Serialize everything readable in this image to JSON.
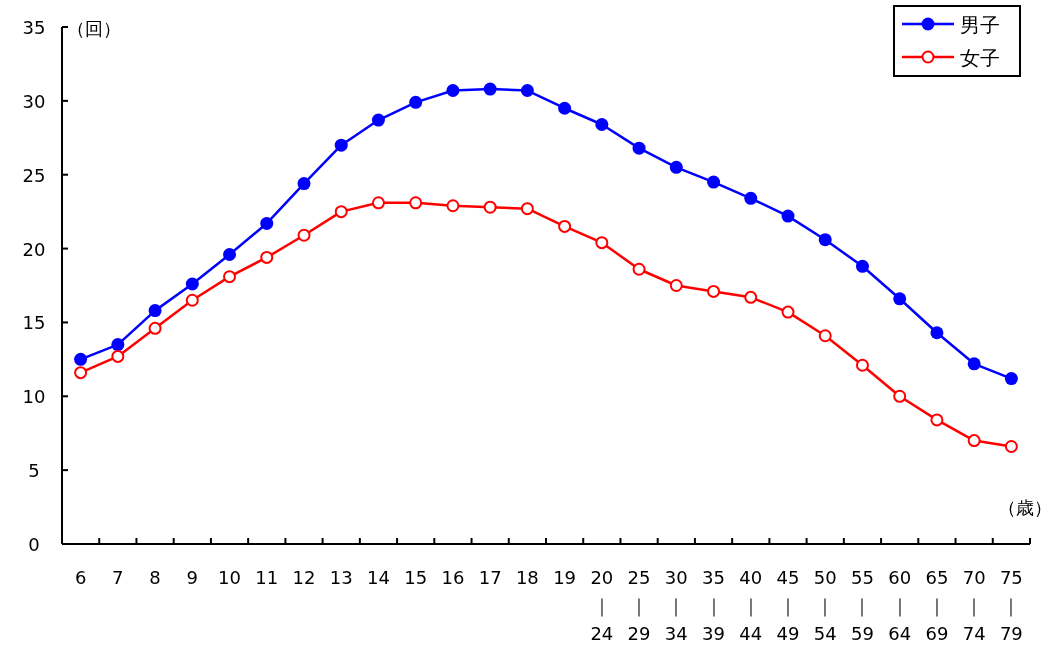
{
  "chart_data": {
    "type": "line",
    "ylabel": "（回）",
    "xlabel": "（歳）",
    "categories": [
      "6",
      "7",
      "8",
      "9",
      "10",
      "11",
      "12",
      "13",
      "14",
      "15",
      "16",
      "17",
      "18",
      "19",
      "20\n｜\n24",
      "25\n｜\n29",
      "30\n｜\n34",
      "35\n｜\n39",
      "40\n｜\n44",
      "45\n｜\n49",
      "50\n｜\n54",
      "55\n｜\n59",
      "60\n｜\n64",
      "65\n｜\n69",
      "70\n｜\n74",
      "75\n｜\n79"
    ],
    "series": [
      {
        "name": "男子",
        "color": "#0000ff",
        "marker": "circle",
        "values": [
          12.5,
          13.5,
          15.8,
          17.6,
          19.6,
          21.7,
          24.4,
          27.0,
          28.7,
          29.9,
          30.7,
          30.8,
          30.7,
          29.5,
          28.4,
          26.8,
          25.5,
          24.5,
          23.4,
          22.2,
          20.6,
          18.8,
          16.6,
          14.3,
          12.2,
          11.2
        ]
      },
      {
        "name": "女子",
        "color": "#ff0000",
        "marker": "circle",
        "values": [
          11.6,
          12.7,
          14.6,
          16.5,
          18.1,
          19.4,
          20.9,
          22.5,
          23.1,
          23.1,
          22.9,
          22.8,
          22.7,
          21.5,
          20.4,
          18.6,
          17.5,
          17.1,
          16.7,
          15.7,
          14.1,
          12.1,
          10.0,
          8.4,
          7.0,
          6.6
        ]
      }
    ],
    "ylim": [
      0,
      35
    ],
    "yticks": [
      0,
      5,
      10,
      15,
      20,
      25,
      30,
      35
    ],
    "grid": false,
    "legend": "top right"
  }
}
